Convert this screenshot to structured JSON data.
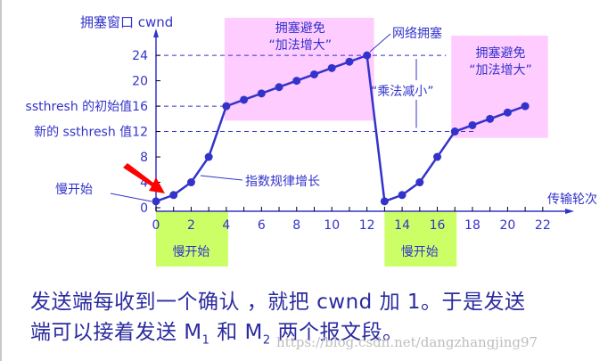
{
  "chart_data": {
    "type": "line",
    "title": "",
    "ylabel": "拥塞窗口 cwnd",
    "xlabel": "传输轮次",
    "x": [
      0,
      1,
      2,
      3,
      4,
      5,
      6,
      7,
      8,
      9,
      10,
      11,
      12,
      13,
      14,
      15,
      16,
      17,
      18,
      19,
      20,
      21
    ],
    "series": [
      {
        "name": "cwnd",
        "values": [
          1,
          2,
          4,
          8,
          16,
          17,
          18,
          19,
          20,
          21,
          22,
          23,
          24,
          1,
          2,
          4,
          8,
          12,
          13,
          14,
          15,
          16
        ]
      }
    ],
    "xticks": [
      0,
      2,
      4,
      6,
      8,
      10,
      12,
      14,
      16,
      18,
      20,
      22
    ],
    "yticks": [
      0,
      4,
      8,
      12,
      16,
      20,
      24
    ],
    "xlim": [
      0,
      23
    ],
    "ylim": [
      0,
      26
    ],
    "grid": false,
    "reference_lines": [
      {
        "y": 24,
        "style": "dashed"
      },
      {
        "y": 16,
        "label": "ssthresh 的初始值",
        "style": "dashed"
      },
      {
        "y": 12,
        "label": "新的 ssthresh 值",
        "style": "dashed"
      }
    ],
    "regions": [
      {
        "x": [
          0,
          4
        ],
        "label": "慢开始",
        "color": "#ccff66"
      },
      {
        "x": [
          13,
          17
        ],
        "label": "慢开始",
        "color": "#ccff66"
      },
      {
        "x": [
          4,
          12.3
        ],
        "label": "拥塞避免 “加法增大”",
        "color": "#ffccff"
      },
      {
        "x": [
          17,
          21.5
        ],
        "label": "拥塞避免 “加法增大”",
        "color": "#ffccff"
      }
    ],
    "annotations": [
      "慢开始",
      "指数规律增长",
      "网络拥塞",
      "“乘法减小”"
    ]
  },
  "labels": {
    "y_axis_title": "拥塞窗口 cwnd",
    "x_axis_title": "传输轮次",
    "ssthresh_init": "ssthresh 的初始值",
    "ssthresh_new": "新的 ssthresh 值",
    "slow_start_left": "慢开始",
    "slow_start_band_1": "慢开始",
    "slow_start_band_2": "慢开始",
    "ca_title_1": "拥塞避免",
    "ca_sub_1": "“加法增大”",
    "ca_title_2": "拥塞避免",
    "ca_sub_2": "“加法增大”",
    "exp_growth": "指数规律增长",
    "congestion": "网络拥塞",
    "mult_decrease": "“乘法减小”"
  },
  "colors": {
    "line": "#3333cc",
    "slow_start_band": "#ccff66",
    "ca_band": "#ffccff",
    "arrow": "#ff0000"
  },
  "caption": {
    "line1": "发送端每收到一个确认 ，就把 cwnd 加 1。于是发送",
    "line2_a": "端可以接着发送 M",
    "line2_sub1": "1",
    "line2_b": " 和 M",
    "line2_sub2": "2",
    "line2_c": " 两个报文段。"
  },
  "watermark": "https://blog.csdn.net/dangzhangjing97"
}
